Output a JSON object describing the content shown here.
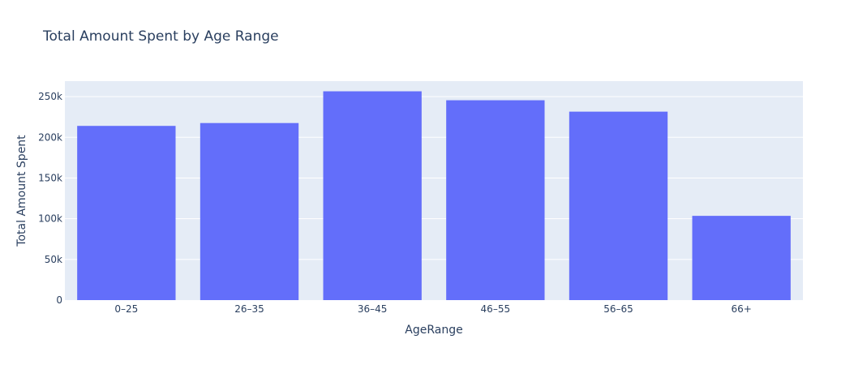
{
  "chart_data": {
    "type": "bar",
    "title": "Total Amount Spent by Age Range",
    "xlabel": "AgeRange",
    "ylabel": "Total Amount Spent",
    "categories": [
      "0–25",
      "26–35",
      "36–45",
      "46–55",
      "56–65",
      "66+"
    ],
    "values": [
      214000,
      217500,
      256500,
      245500,
      231500,
      103500
    ],
    "ylim": [
      0,
      269000
    ],
    "yticks": [
      0,
      50000,
      100000,
      150000,
      200000,
      250000
    ],
    "ytick_labels": [
      "0",
      "50k",
      "100k",
      "150k",
      "200k",
      "250k"
    ],
    "grid": true,
    "legend": "none",
    "colors": {
      "bar": "#636efa",
      "plot_bg": "#e5ecf6",
      "grid": "#ffffff",
      "text": "#2a3f5f"
    }
  }
}
